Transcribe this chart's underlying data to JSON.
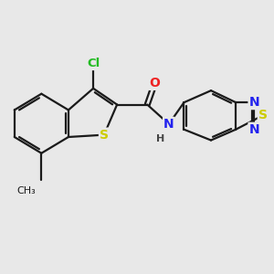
{
  "bg_color": "#e8e8e8",
  "bond_color": "#1a1a1a",
  "bond_lw": 1.6,
  "atom_colors": {
    "S": "#cccc00",
    "N": "#2222ee",
    "O": "#ee2222",
    "Cl": "#22bb22",
    "C": "#1a1a1a",
    "H": "#444444"
  },
  "fs": 9.5
}
